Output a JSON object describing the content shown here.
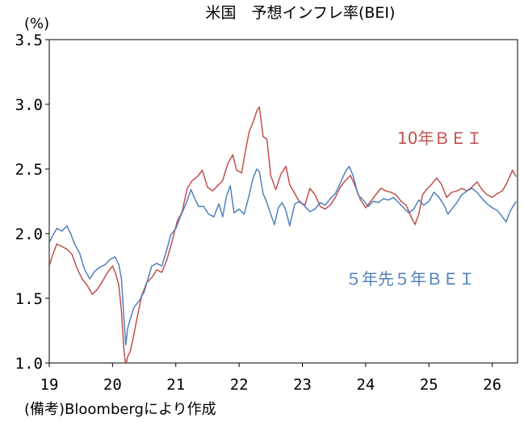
{
  "chart_data": {
    "type": "line",
    "title": "米国　予想インフレ率(BEI)",
    "unit": "(%)",
    "source": "(備考)Bloombergにより作成",
    "ylim": [
      1.0,
      3.5
    ],
    "yticks": [
      "3.5",
      "3.0",
      "2.5",
      "2.0",
      "1.5",
      "1.0"
    ],
    "xlim": [
      2019.0,
      2026.4
    ],
    "xticks": [
      "19",
      "20",
      "21",
      "22",
      "23",
      "24",
      "25",
      "26"
    ],
    "grid": false,
    "series": [
      {
        "name": "10年ＢＥＩ",
        "color": "#c0504d",
        "points": [
          [
            2019.0,
            1.75
          ],
          [
            2019.05,
            1.83
          ],
          [
            2019.12,
            1.92
          ],
          [
            2019.2,
            1.9
          ],
          [
            2019.28,
            1.88
          ],
          [
            2019.36,
            1.84
          ],
          [
            2019.44,
            1.73
          ],
          [
            2019.52,
            1.65
          ],
          [
            2019.6,
            1.6
          ],
          [
            2019.68,
            1.53
          ],
          [
            2019.76,
            1.57
          ],
          [
            2019.84,
            1.63
          ],
          [
            2019.92,
            1.7
          ],
          [
            2020.0,
            1.75
          ],
          [
            2020.05,
            1.69
          ],
          [
            2020.1,
            1.6
          ],
          [
            2020.14,
            1.4
          ],
          [
            2020.18,
            1.1
          ],
          [
            2020.21,
            0.98
          ],
          [
            2020.24,
            1.05
          ],
          [
            2020.28,
            1.09
          ],
          [
            2020.32,
            1.18
          ],
          [
            2020.38,
            1.33
          ],
          [
            2020.46,
            1.52
          ],
          [
            2020.54,
            1.62
          ],
          [
            2020.62,
            1.66
          ],
          [
            2020.7,
            1.72
          ],
          [
            2020.78,
            1.7
          ],
          [
            2020.86,
            1.8
          ],
          [
            2020.94,
            1.94
          ],
          [
            2021.02,
            2.09
          ],
          [
            2021.1,
            2.17
          ],
          [
            2021.18,
            2.35
          ],
          [
            2021.26,
            2.41
          ],
          [
            2021.34,
            2.44
          ],
          [
            2021.42,
            2.49
          ],
          [
            2021.5,
            2.36
          ],
          [
            2021.58,
            2.33
          ],
          [
            2021.66,
            2.37
          ],
          [
            2021.74,
            2.41
          ],
          [
            2021.82,
            2.54
          ],
          [
            2021.9,
            2.61
          ],
          [
            2021.96,
            2.49
          ],
          [
            2022.04,
            2.47
          ],
          [
            2022.1,
            2.64
          ],
          [
            2022.16,
            2.79
          ],
          [
            2022.22,
            2.86
          ],
          [
            2022.28,
            2.95
          ],
          [
            2022.32,
            2.98
          ],
          [
            2022.38,
            2.75
          ],
          [
            2022.44,
            2.73
          ],
          [
            2022.5,
            2.45
          ],
          [
            2022.58,
            2.34
          ],
          [
            2022.66,
            2.46
          ],
          [
            2022.74,
            2.52
          ],
          [
            2022.8,
            2.38
          ],
          [
            2022.88,
            2.31
          ],
          [
            2022.96,
            2.24
          ],
          [
            2023.04,
            2.22
          ],
          [
            2023.12,
            2.35
          ],
          [
            2023.2,
            2.3
          ],
          [
            2023.28,
            2.21
          ],
          [
            2023.36,
            2.19
          ],
          [
            2023.44,
            2.22
          ],
          [
            2023.52,
            2.28
          ],
          [
            2023.6,
            2.36
          ],
          [
            2023.68,
            2.41
          ],
          [
            2023.76,
            2.45
          ],
          [
            2023.84,
            2.36
          ],
          [
            2023.92,
            2.26
          ],
          [
            2024.0,
            2.2
          ],
          [
            2024.08,
            2.25
          ],
          [
            2024.16,
            2.3
          ],
          [
            2024.24,
            2.35
          ],
          [
            2024.32,
            2.33
          ],
          [
            2024.4,
            2.32
          ],
          [
            2024.48,
            2.3
          ],
          [
            2024.56,
            2.25
          ],
          [
            2024.64,
            2.22
          ],
          [
            2024.72,
            2.13
          ],
          [
            2024.78,
            2.07
          ],
          [
            2024.84,
            2.15
          ],
          [
            2024.9,
            2.3
          ],
          [
            2024.96,
            2.34
          ],
          [
            2025.04,
            2.38
          ],
          [
            2025.12,
            2.43
          ],
          [
            2025.2,
            2.38
          ],
          [
            2025.28,
            2.28
          ],
          [
            2025.36,
            2.32
          ],
          [
            2025.44,
            2.33
          ],
          [
            2025.52,
            2.35
          ],
          [
            2025.6,
            2.33
          ],
          [
            2025.68,
            2.36
          ],
          [
            2025.76,
            2.4
          ],
          [
            2025.84,
            2.34
          ],
          [
            2025.92,
            2.3
          ],
          [
            2026.0,
            2.28
          ],
          [
            2026.08,
            2.31
          ],
          [
            2026.16,
            2.33
          ],
          [
            2026.24,
            2.4
          ],
          [
            2026.32,
            2.49
          ],
          [
            2026.38,
            2.44
          ]
        ]
      },
      {
        "name": "５年先５年ＢＥＩ",
        "color": "#4f81bd",
        "points": [
          [
            2019.0,
            1.93
          ],
          [
            2019.06,
            1.99
          ],
          [
            2019.12,
            2.04
          ],
          [
            2019.2,
            2.02
          ],
          [
            2019.28,
            2.06
          ],
          [
            2019.34,
            2.0
          ],
          [
            2019.4,
            1.92
          ],
          [
            2019.48,
            1.85
          ],
          [
            2019.56,
            1.72
          ],
          [
            2019.64,
            1.65
          ],
          [
            2019.72,
            1.71
          ],
          [
            2019.8,
            1.74
          ],
          [
            2019.88,
            1.76
          ],
          [
            2019.96,
            1.8
          ],
          [
            2020.04,
            1.82
          ],
          [
            2020.1,
            1.76
          ],
          [
            2020.14,
            1.65
          ],
          [
            2020.18,
            1.35
          ],
          [
            2020.21,
            1.14
          ],
          [
            2020.24,
            1.27
          ],
          [
            2020.28,
            1.34
          ],
          [
            2020.34,
            1.43
          ],
          [
            2020.42,
            1.48
          ],
          [
            2020.5,
            1.55
          ],
          [
            2020.56,
            1.65
          ],
          [
            2020.62,
            1.75
          ],
          [
            2020.7,
            1.77
          ],
          [
            2020.78,
            1.75
          ],
          [
            2020.86,
            1.88
          ],
          [
            2020.92,
            1.99
          ],
          [
            2021.0,
            2.04
          ],
          [
            2021.08,
            2.14
          ],
          [
            2021.16,
            2.23
          ],
          [
            2021.24,
            2.34
          ],
          [
            2021.3,
            2.27
          ],
          [
            2021.36,
            2.21
          ],
          [
            2021.44,
            2.21
          ],
          [
            2021.52,
            2.15
          ],
          [
            2021.6,
            2.13
          ],
          [
            2021.68,
            2.23
          ],
          [
            2021.74,
            2.13
          ],
          [
            2021.8,
            2.29
          ],
          [
            2021.86,
            2.37
          ],
          [
            2021.92,
            2.16
          ],
          [
            2022.0,
            2.19
          ],
          [
            2022.08,
            2.15
          ],
          [
            2022.16,
            2.3
          ],
          [
            2022.22,
            2.43
          ],
          [
            2022.28,
            2.5
          ],
          [
            2022.32,
            2.48
          ],
          [
            2022.38,
            2.31
          ],
          [
            2022.44,
            2.24
          ],
          [
            2022.5,
            2.15
          ],
          [
            2022.56,
            2.07
          ],
          [
            2022.62,
            2.2
          ],
          [
            2022.68,
            2.24
          ],
          [
            2022.74,
            2.18
          ],
          [
            2022.8,
            2.06
          ],
          [
            2022.88,
            2.23
          ],
          [
            2022.96,
            2.25
          ],
          [
            2023.04,
            2.21
          ],
          [
            2023.12,
            2.17
          ],
          [
            2023.2,
            2.19
          ],
          [
            2023.28,
            2.24
          ],
          [
            2023.36,
            2.22
          ],
          [
            2023.44,
            2.27
          ],
          [
            2023.52,
            2.31
          ],
          [
            2023.6,
            2.39
          ],
          [
            2023.68,
            2.48
          ],
          [
            2023.74,
            2.52
          ],
          [
            2023.8,
            2.45
          ],
          [
            2023.88,
            2.3
          ],
          [
            2023.96,
            2.26
          ],
          [
            2024.04,
            2.21
          ],
          [
            2024.12,
            2.25
          ],
          [
            2024.2,
            2.24
          ],
          [
            2024.28,
            2.27
          ],
          [
            2024.36,
            2.26
          ],
          [
            2024.44,
            2.28
          ],
          [
            2024.52,
            2.24
          ],
          [
            2024.6,
            2.2
          ],
          [
            2024.68,
            2.16
          ],
          [
            2024.76,
            2.19
          ],
          [
            2024.84,
            2.26
          ],
          [
            2024.92,
            2.22
          ],
          [
            2025.0,
            2.25
          ],
          [
            2025.08,
            2.32
          ],
          [
            2025.16,
            2.28
          ],
          [
            2025.24,
            2.22
          ],
          [
            2025.3,
            2.15
          ],
          [
            2025.36,
            2.19
          ],
          [
            2025.44,
            2.24
          ],
          [
            2025.52,
            2.3
          ],
          [
            2025.6,
            2.33
          ],
          [
            2025.68,
            2.35
          ],
          [
            2025.76,
            2.32
          ],
          [
            2025.84,
            2.27
          ],
          [
            2025.92,
            2.23
          ],
          [
            2026.0,
            2.2
          ],
          [
            2026.08,
            2.18
          ],
          [
            2026.16,
            2.13
          ],
          [
            2026.22,
            2.09
          ],
          [
            2026.28,
            2.17
          ],
          [
            2026.34,
            2.22
          ],
          [
            2026.38,
            2.25
          ]
        ]
      }
    ]
  }
}
